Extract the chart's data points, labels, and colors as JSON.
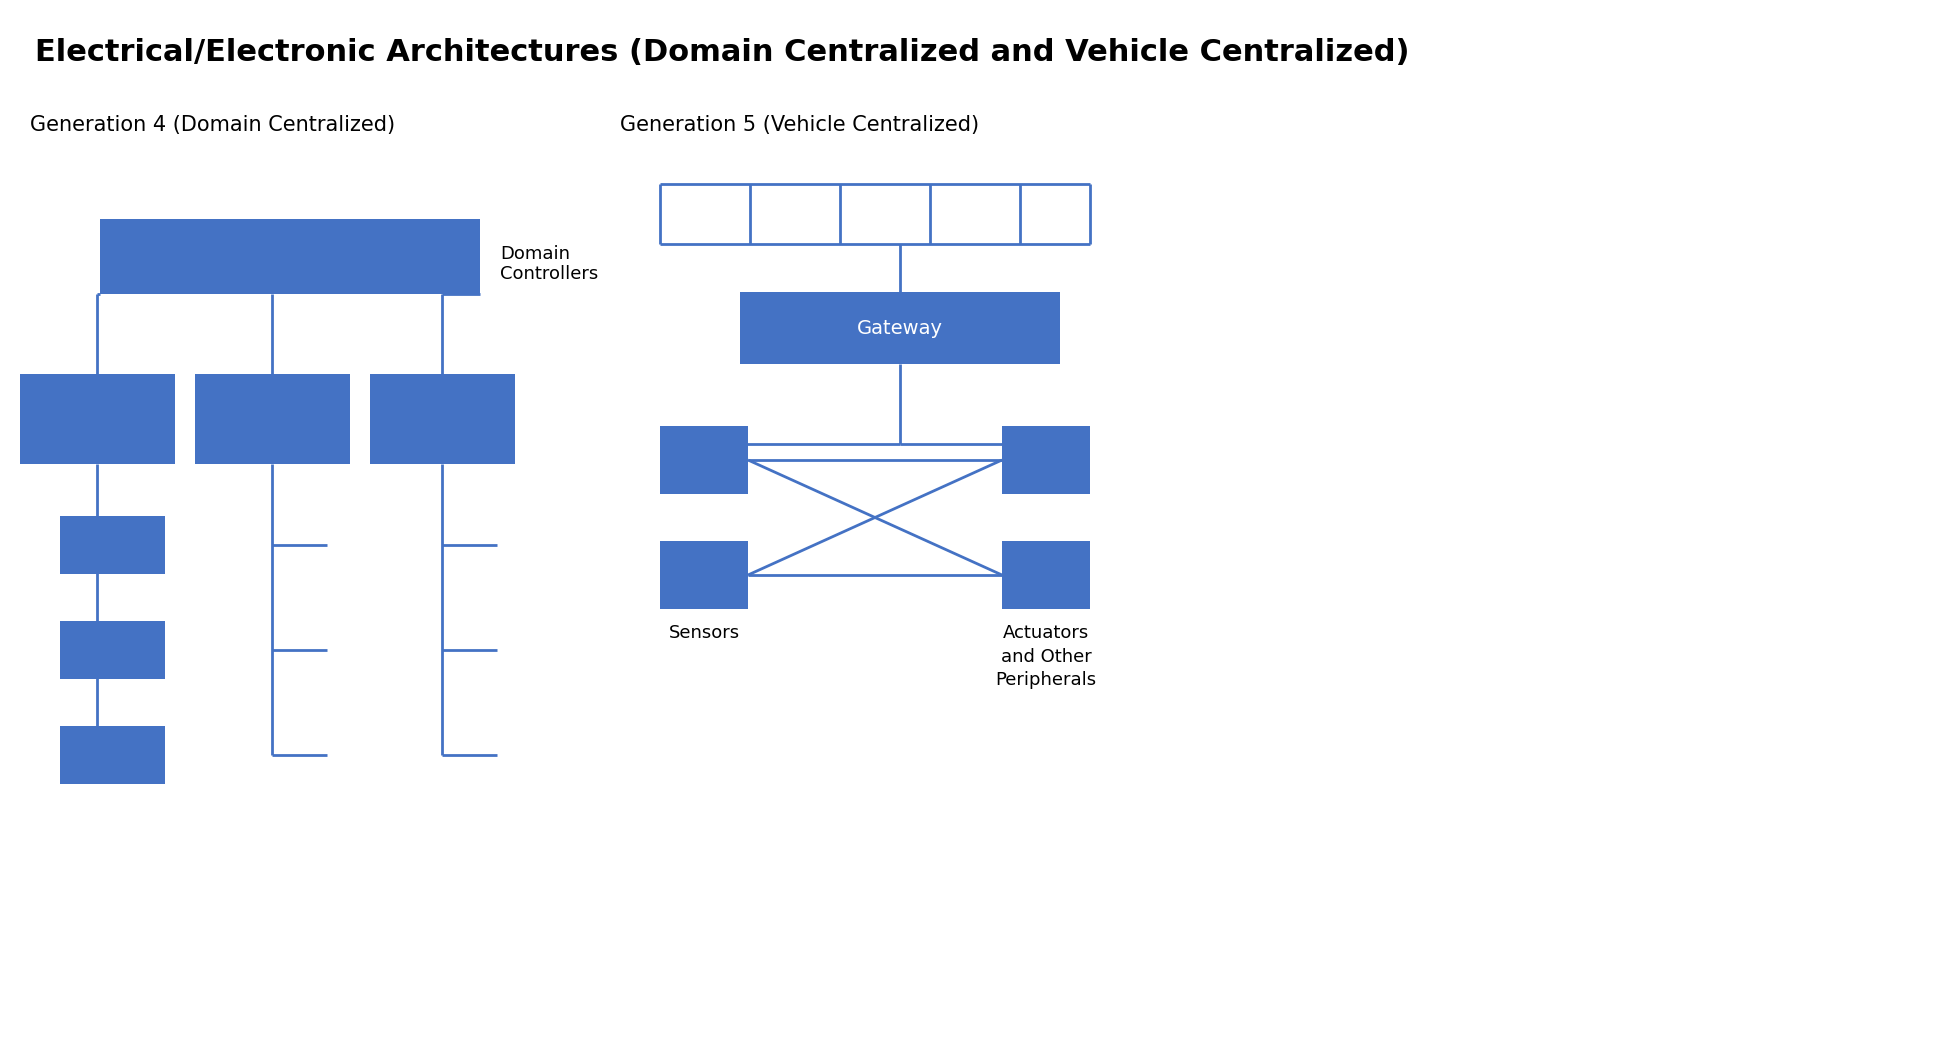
{
  "title": "Electrical/Electronic Architectures (Domain Centralized and Vehicle Centralized)",
  "title_fontsize": 22,
  "title_fontweight": "bold",
  "subtitle_left": "Generation 4 (Domain Centralized)",
  "subtitle_right": "Generation 5 (Vehicle Centralized)",
  "subtitle_fontsize": 15,
  "box_color": "#4472C4",
  "line_color": "#4472C4",
  "bg_color": "#FFFFFF",
  "text_color": "#000000",
  "line_width": 2.0,
  "figsize": [
    19.42,
    10.54
  ],
  "dpi": 100,
  "domain_label": "Domain\nControllers",
  "sensors_label": "Sensors",
  "actuators_label": "Actuators\nand Other\nPeripherals",
  "gateway_label": "Gateway"
}
